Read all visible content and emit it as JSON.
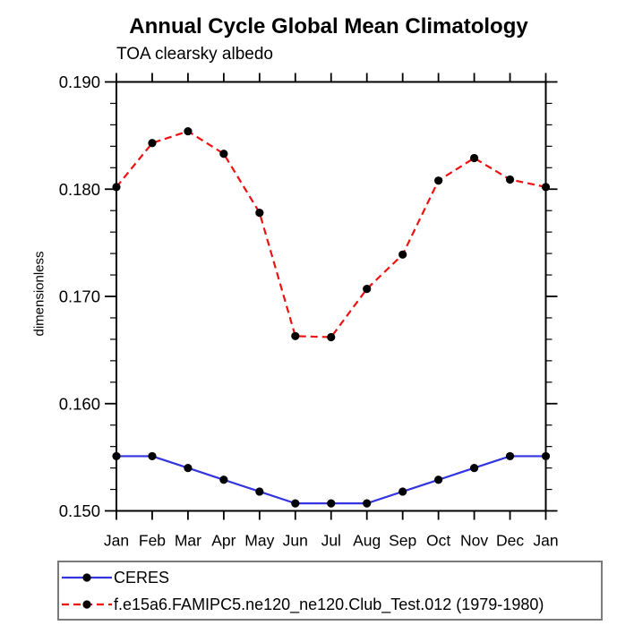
{
  "figure": {
    "background": "#ffffff"
  },
  "chart_data": {
    "type": "line",
    "title": "Annual Cycle Global Mean Climatology",
    "subtitle": "TOA clearsky albedo",
    "ylabel": "dimensionless",
    "xlabel": "",
    "categories": [
      "Jan",
      "Feb",
      "Mar",
      "Apr",
      "May",
      "Jun",
      "Jul",
      "Aug",
      "Sep",
      "Oct",
      "Nov",
      "Dec",
      "Jan"
    ],
    "ylim": [
      0.15,
      0.19
    ],
    "ytick_major_step": 0.01,
    "ytick_minor_step": 0.002,
    "ytick_labels": [
      "0.150",
      "0.160",
      "0.170",
      "0.180",
      "0.190"
    ],
    "grid": false,
    "axis_color": "#000000",
    "text_color": "#000000",
    "legend": {
      "position": "bottom-left",
      "border_color": "#7a7a7a"
    },
    "series": [
      {
        "name": "CERES",
        "line_color": "#3333e0",
        "line_style": "solid",
        "marker": "filled-circle",
        "marker_color": "#000000",
        "values": [
          0.1551,
          0.1551,
          0.154,
          0.1529,
          0.1518,
          0.1507,
          0.1507,
          0.1507,
          0.1518,
          0.1529,
          0.154,
          0.1551,
          0.1551
        ]
      },
      {
        "name": "f.e15a6.FAMIPC5.ne120_ne120.Club_Test.012 (1979-1980)",
        "line_color": "#ee1111",
        "line_style": "dashed",
        "marker": "filled-circle",
        "marker_color": "#000000",
        "values": [
          0.1802,
          0.1843,
          0.1854,
          0.1833,
          0.1778,
          0.1663,
          0.1662,
          0.1707,
          0.1739,
          0.1808,
          0.1829,
          0.1809,
          0.1802
        ]
      }
    ]
  }
}
